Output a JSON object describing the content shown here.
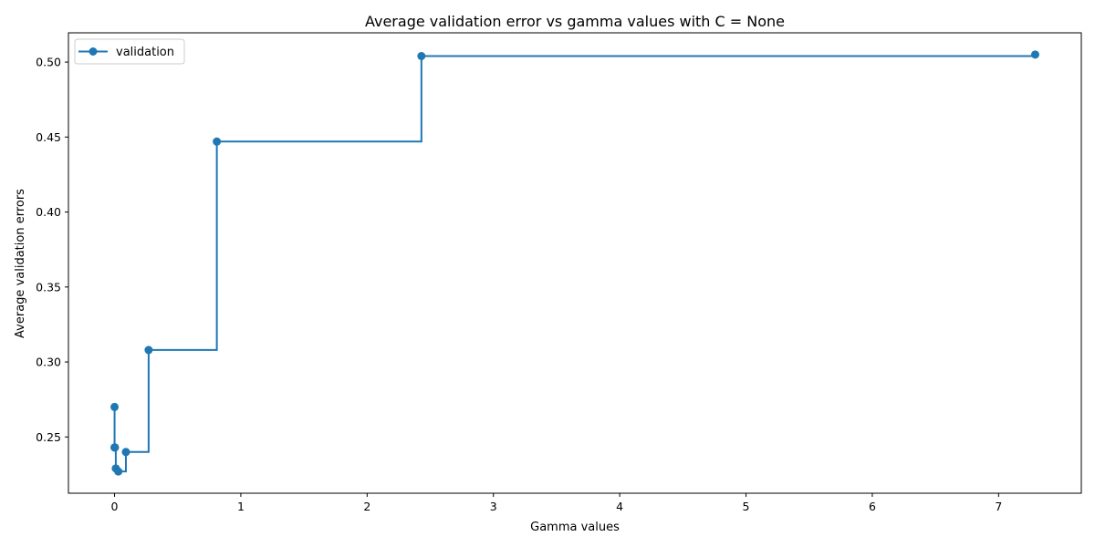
{
  "chart_data": {
    "type": "line",
    "drawstyle": "steps-post",
    "title": "Average validation error vs gamma values with C = None",
    "xlabel": "Gamma values",
    "ylabel": "Average validation errors",
    "xlim": [
      -0.365,
      7.655
    ],
    "ylim": [
      0.2125,
      0.5195
    ],
    "xticks": [
      0,
      1,
      2,
      3,
      4,
      5,
      6,
      7
    ],
    "xtick_labels": [
      "0",
      "1",
      "2",
      "3",
      "4",
      "5",
      "6",
      "7"
    ],
    "yticks": [
      0.25,
      0.3,
      0.35,
      0.4,
      0.45,
      0.5
    ],
    "ytick_labels": [
      "0.25",
      "0.30",
      "0.35",
      "0.40",
      "0.45",
      "0.50"
    ],
    "grid": false,
    "legend": {
      "placement": "top-left",
      "entries": [
        "validation"
      ]
    },
    "series": [
      {
        "name": "validation",
        "color": "#1f77b4",
        "marker": "circle",
        "x": [
          0.0001,
          0.0003,
          0.001,
          0.003,
          0.01,
          0.03,
          0.09,
          0.27,
          0.81,
          2.43,
          7.29
        ],
        "y": [
          0.27,
          0.243,
          0.243,
          0.243,
          0.229,
          0.227,
          0.24,
          0.308,
          0.447,
          0.504,
          0.505
        ]
      }
    ]
  }
}
